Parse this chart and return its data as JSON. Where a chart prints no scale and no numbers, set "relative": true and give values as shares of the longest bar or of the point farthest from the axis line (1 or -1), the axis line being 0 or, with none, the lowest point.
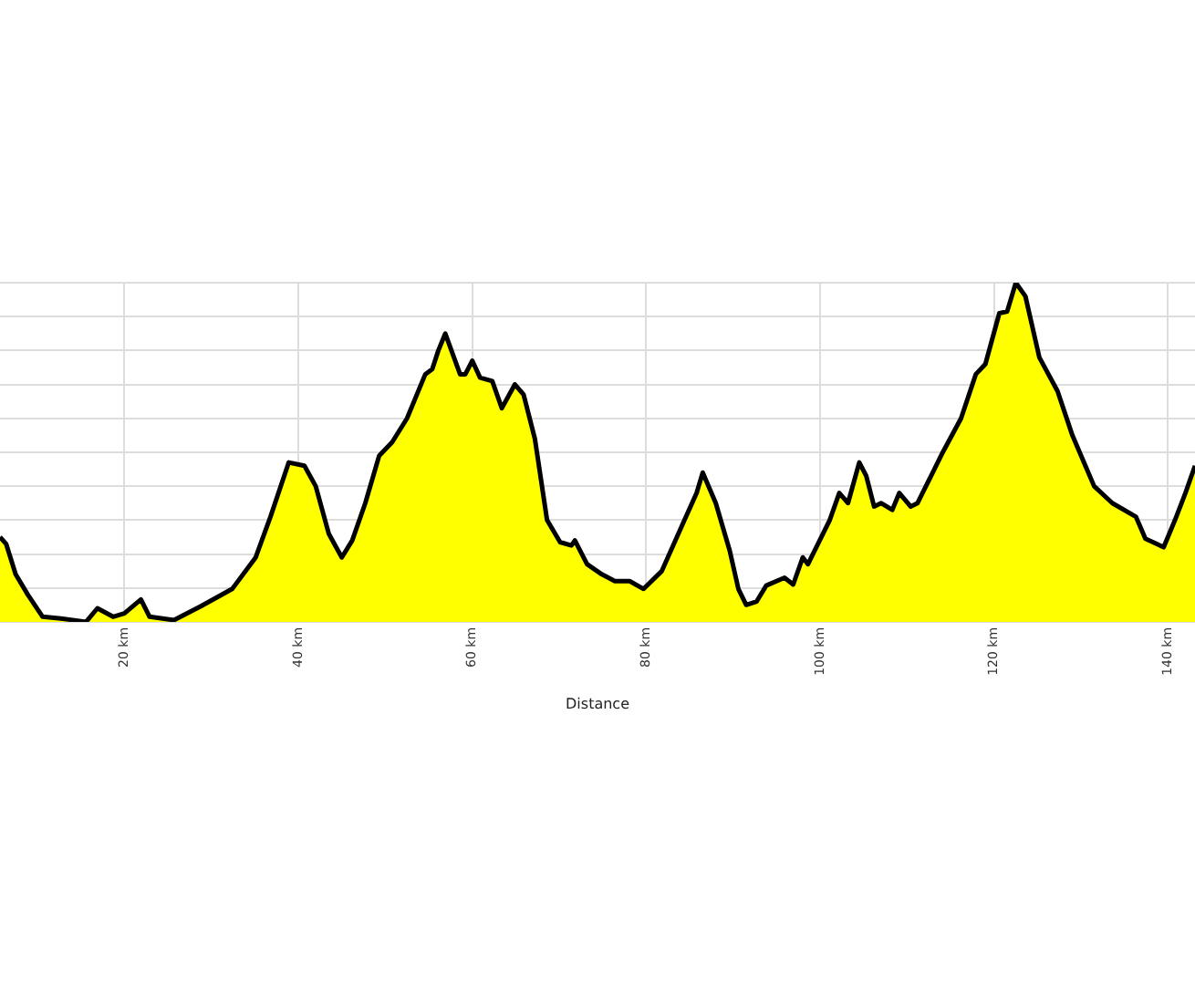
{
  "chart_data": {
    "type": "area",
    "xlabel": "Distance",
    "relative": true,
    "grid": true,
    "legend": false,
    "marker": "none",
    "line_style": "solid",
    "xlim": [
      5.7,
      143.1
    ],
    "xticks": [
      {
        "value": 20,
        "label": "20 km"
      },
      {
        "value": 40,
        "label": "40 km"
      },
      {
        "value": 60,
        "label": "60 km"
      },
      {
        "value": 80,
        "label": "80 km"
      },
      {
        "value": 100,
        "label": "100 km"
      },
      {
        "value": 120,
        "label": "120 km"
      },
      {
        "value": 140,
        "label": "140 km"
      }
    ],
    "series": [
      {
        "color": "#ffff00",
        "x": [
          5.7,
          6.4,
          7.5,
          8.9,
          10.6,
          12.7,
          15.6,
          16.9,
          18.7,
          20.0,
          21.9,
          22.9,
          25.7,
          28.8,
          32.4,
          35.1,
          36.8,
          38.9,
          40.7,
          42.0,
          43.5,
          45.0,
          46.2,
          47.7,
          49.3,
          50.8,
          52.5,
          54.6,
          55.4,
          56.1,
          56.9,
          58.6,
          59.2,
          60.0,
          60.9,
          62.3,
          63.4,
          64.9,
          65.9,
          67.2,
          68.6,
          70.1,
          71.4,
          71.8,
          73.2,
          74.9,
          76.4,
          78.1,
          79.7,
          81.8,
          84.4,
          85.8,
          86.5,
          88.0,
          89.6,
          90.6,
          91.5,
          92.7,
          93.8,
          95.9,
          96.9,
          98.0,
          98.6,
          101.1,
          102.2,
          103.2,
          104.5,
          105.3,
          106.2,
          107.0,
          108.3,
          109.1,
          110.4,
          111.2,
          114.1,
          116.2,
          117.9,
          119.0,
          120.6,
          121.5,
          122.5,
          123.6,
          125.2,
          127.3,
          129.0,
          131.5,
          133.6,
          136.3,
          137.4,
          139.5,
          140.8,
          142.0,
          143.1
        ],
        "values": [
          0.25,
          0.23,
          0.14,
          0.08,
          0.015,
          0.01,
          0,
          0.04,
          0.015,
          0.025,
          0.066,
          0.015,
          0.005,
          0.046,
          0.097,
          0.19,
          0.31,
          0.47,
          0.46,
          0.4,
          0.26,
          0.19,
          0.24,
          0.35,
          0.49,
          0.53,
          0.6,
          0.73,
          0.745,
          0.8,
          0.85,
          0.73,
          0.73,
          0.77,
          0.72,
          0.71,
          0.63,
          0.7,
          0.67,
          0.54,
          0.3,
          0.235,
          0.225,
          0.24,
          0.17,
          0.14,
          0.12,
          0.12,
          0.097,
          0.15,
          0.3,
          0.38,
          0.44,
          0.35,
          0.21,
          0.097,
          0.05,
          0.06,
          0.107,
          0.13,
          0.11,
          0.19,
          0.17,
          0.3,
          0.38,
          0.35,
          0.47,
          0.43,
          0.34,
          0.35,
          0.33,
          0.38,
          0.34,
          0.35,
          0.5,
          0.6,
          0.73,
          0.76,
          0.91,
          0.915,
          1.0,
          0.96,
          0.78,
          0.68,
          0.55,
          0.4,
          0.35,
          0.31,
          0.245,
          0.22,
          0.3,
          0.38,
          0.46
        ]
      }
    ]
  }
}
